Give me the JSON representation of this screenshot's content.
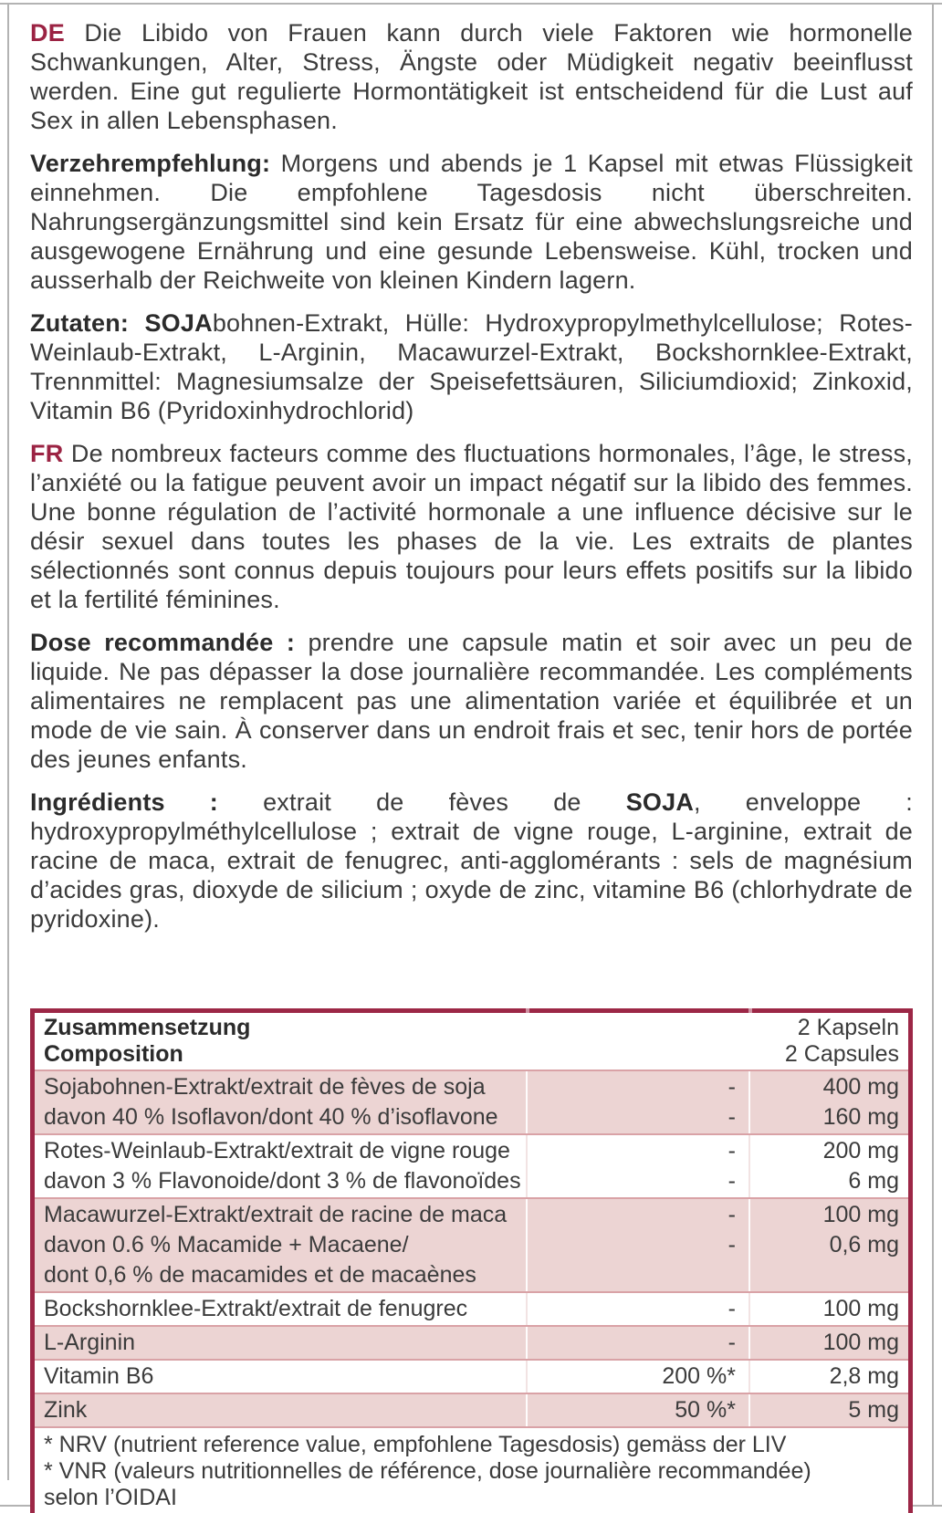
{
  "colors": {
    "accent_maroon": "#9b2343",
    "table_border": "#9c2746",
    "row_pink": "#ecd4d3",
    "row_separator": "#d9a2a6",
    "body_text": "#3b3b3b",
    "edge_grey": "#b3b3b3"
  },
  "paragraphs": [
    {
      "segments": [
        {
          "style": "lang",
          "text": "DE"
        },
        {
          "style": "normal",
          "text": " Die Libido von Frauen kann durch viele Faktoren wie hormonelle Schwankungen, Alter, Stress, Ängste oder Müdigkeit negativ beeinflusst werden. Eine gut regulierte Hormontätigkeit ist entscheidend für die Lust auf Sex in allen Lebensphasen."
        }
      ]
    },
    {
      "segments": [
        {
          "style": "bold",
          "text": "Verzehrempfehlung:"
        },
        {
          "style": "normal",
          "text": " Morgens und abends je 1 Kapsel mit etwas Flüssigkeit einnehmen. Die empfohlene Tagesdosis nicht überschreiten. Nahrungsergänzungsmittel sind kein Ersatz für eine abwechslungsreiche und ausgewogene Ernährung und eine gesunde Lebensweise. Kühl, trocken und ausserhalb der Reichweite von kleinen Kindern lagern."
        }
      ]
    },
    {
      "segments": [
        {
          "style": "bold",
          "text": "Zutaten: SOJA"
        },
        {
          "style": "normal",
          "text": "bohnen-Extrakt, Hülle: Hydroxypropylmethylcellulose; Rotes-Weinlaub-Extrakt, L-Arginin, Macawurzel-Extrakt, Bockshornklee-Extrakt, Trennmittel: Magnesiumsalze der Speisefettsäuren, Siliciumdioxid; Zinkoxid, Vitamin B6 (Pyridoxinhydrochlorid)"
        }
      ]
    },
    {
      "segments": [
        {
          "style": "lang",
          "text": "FR"
        },
        {
          "style": "normal",
          "text": " De nombreux facteurs comme des fluctuations hormonales, l’âge, le stress, l’anxiété ou la fatigue peuvent avoir un impact négatif sur la libido des femmes. Une bonne régulation de l’activité hormonale a une influence décisive sur le désir sexuel dans toutes les phases de la vie. Les extraits de plantes sélectionnés sont connus depuis toujours pour leurs effets positifs sur la libido et la fertilité féminines."
        }
      ]
    },
    {
      "segments": [
        {
          "style": "bold",
          "text": "Dose recommandée :"
        },
        {
          "style": "normal",
          "text": " prendre une capsule matin et soir avec un peu de liquide. Ne pas dépasser la dose journalière recommandée. Les compléments alimentaires ne remplacent pas une alimentation variée et équilibrée et un mode de vie sain. À conserver dans un endroit frais et sec, tenir hors de portée des jeunes enfants."
        }
      ]
    },
    {
      "segments": [
        {
          "style": "bold",
          "text": "Ingrédients :"
        },
        {
          "style": "normal",
          "text": " extrait de fèves de "
        },
        {
          "style": "bold",
          "text": "SOJA"
        },
        {
          "style": "normal",
          "text": ", enveloppe : hydroxypropylméthylcellulose ; extrait de vigne rouge, L-arginine, extrait de racine de maca, extrait de fenugrec, anti-agglomérants : sels de magnésium d’acides gras, dioxyde de silicium ; oxyde de zinc, vitamine B6 (chlorhydrate de pyridoxine)."
        }
      ]
    }
  ],
  "composition_table": {
    "header": {
      "title_de": "Zusammensetzung",
      "title_fr": "Composition",
      "dose_de": "2 Kapseln",
      "dose_fr": "2 Capsules"
    },
    "rows": [
      {
        "shaded": true,
        "lines": [
          {
            "name": "Sojabohnen-Extrakt/extrait de fèves de soja",
            "nrv": "-",
            "amount": "400 mg"
          },
          {
            "name": "davon 40 % Isoflavon/dont 40 % d’isoflavone",
            "nrv": "-",
            "amount": "160 mg"
          }
        ]
      },
      {
        "shaded": false,
        "lines": [
          {
            "name": "Rotes-Weinlaub-Extrakt/extrait de vigne rouge",
            "nrv": "-",
            "amount": "200 mg"
          },
          {
            "name": "davon 3 % Flavonoide/dont 3 % de flavonoïdes",
            "nrv": "-",
            "amount": "6 mg"
          }
        ]
      },
      {
        "shaded": true,
        "lines": [
          {
            "name": "Macawurzel-Extrakt/extrait de racine de maca",
            "nrv": "-",
            "amount": "100 mg"
          },
          {
            "name": "davon 0.6 % Macamide + Macaene/",
            "nrv": "-",
            "amount": "0,6 mg"
          },
          {
            "name": "dont 0,6 % de macamides et de macaènes",
            "nrv": "",
            "amount": ""
          }
        ]
      },
      {
        "shaded": false,
        "lines": [
          {
            "name": "Bockshornklee-Extrakt/extrait de fenugrec",
            "nrv": "-",
            "amount": "100 mg"
          }
        ]
      },
      {
        "shaded": true,
        "lines": [
          {
            "name": "L-Arginin",
            "nrv": "-",
            "amount": "100 mg"
          }
        ]
      },
      {
        "shaded": false,
        "lines": [
          {
            "name": "Vitamin B6",
            "nrv": "200 %*",
            "amount": "2,8 mg"
          }
        ]
      },
      {
        "shaded": true,
        "lines": [
          {
            "name": "Zink",
            "nrv": "50 %*",
            "amount": "5 mg"
          }
        ]
      }
    ],
    "footnotes": [
      "* NRV (nutrient reference value, empfohlene Tagesdosis) gemäss der LIV",
      "* VNR (valeurs nutritionnelles de référence, dose journalière recommandée)",
      "selon l’OIDAI"
    ]
  }
}
